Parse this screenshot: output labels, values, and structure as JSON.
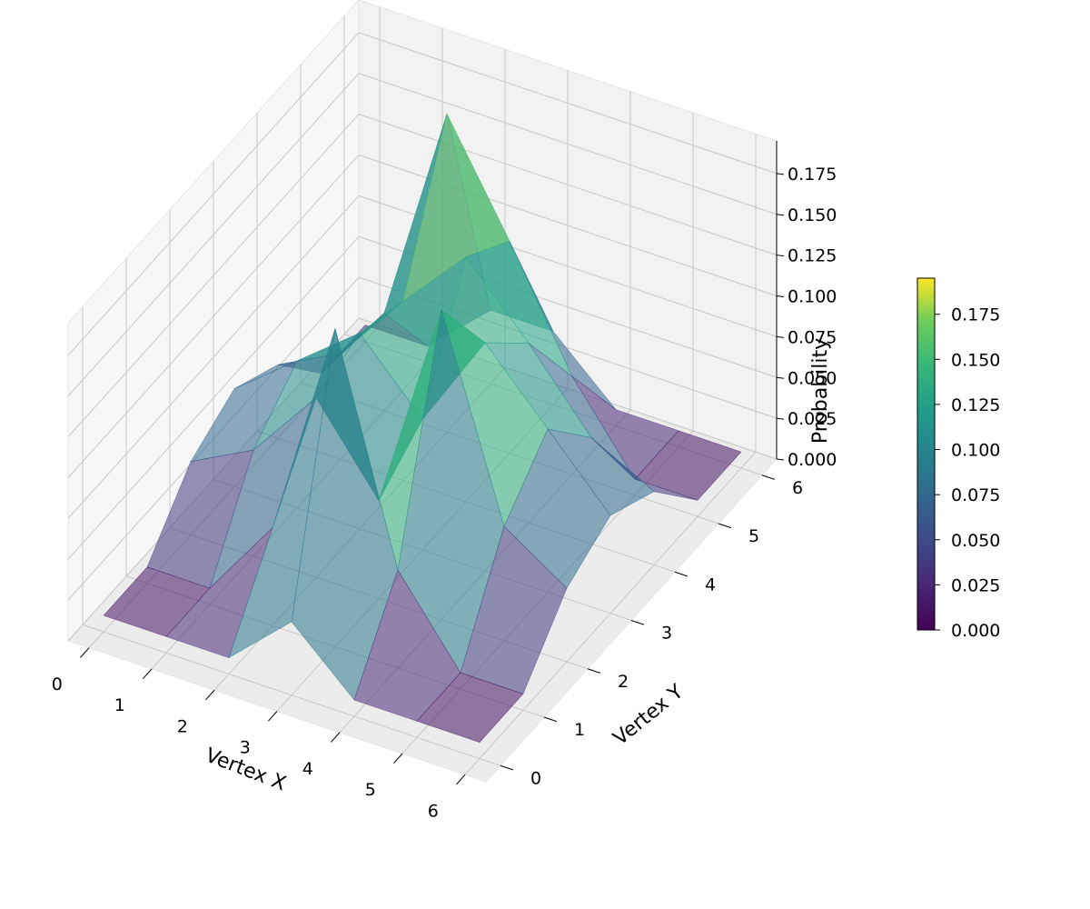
{
  "chart_data": {
    "type": "surface3d",
    "title": "",
    "xlabel": "Vertex X",
    "ylabel": "Vertex Y",
    "zlabel": "Probability",
    "x": [
      0,
      1,
      2,
      3,
      4,
      5,
      6
    ],
    "y": [
      0,
      1,
      2,
      3,
      4,
      5,
      6
    ],
    "x_tick_labels": [
      "0",
      "1",
      "2",
      "3",
      "4",
      "5",
      "6"
    ],
    "y_tick_labels": [
      "0",
      "1",
      "2",
      "3",
      "4",
      "5",
      "6"
    ],
    "z_tick_labels": [
      "0.000",
      "0.025",
      "0.050",
      "0.075",
      "0.100",
      "0.125",
      "0.150",
      "0.175"
    ],
    "zlim": [
      0,
      0.195
    ],
    "z": [
      [
        0.01,
        0.01,
        0.01,
        0.045,
        0.01,
        0.01,
        0.01
      ],
      [
        0.01,
        0.01,
        0.06,
        0.195,
        0.06,
        0.01,
        0.01
      ],
      [
        0.045,
        0.065,
        0.11,
        0.06,
        0.19,
        0.07,
        0.045
      ],
      [
        0.06,
        0.09,
        0.12,
        0.08,
        0.14,
        0.1,
        0.06
      ],
      [
        0.045,
        0.065,
        0.11,
        0.15,
        0.11,
        0.065,
        0.045
      ],
      [
        0.01,
        0.06,
        0.195,
        0.13,
        0.06,
        0.01,
        0.01
      ],
      [
        0.01,
        0.01,
        0.045,
        0.045,
        0.01,
        0.01,
        0.01
      ]
    ],
    "colormap": "viridis",
    "surface_alpha": 0.55,
    "colorbar": {
      "range": [
        0,
        0.195
      ],
      "tick_labels": [
        "0.000",
        "0.025",
        "0.050",
        "0.075",
        "0.100",
        "0.125",
        "0.150",
        "0.175"
      ]
    },
    "grid": true
  }
}
